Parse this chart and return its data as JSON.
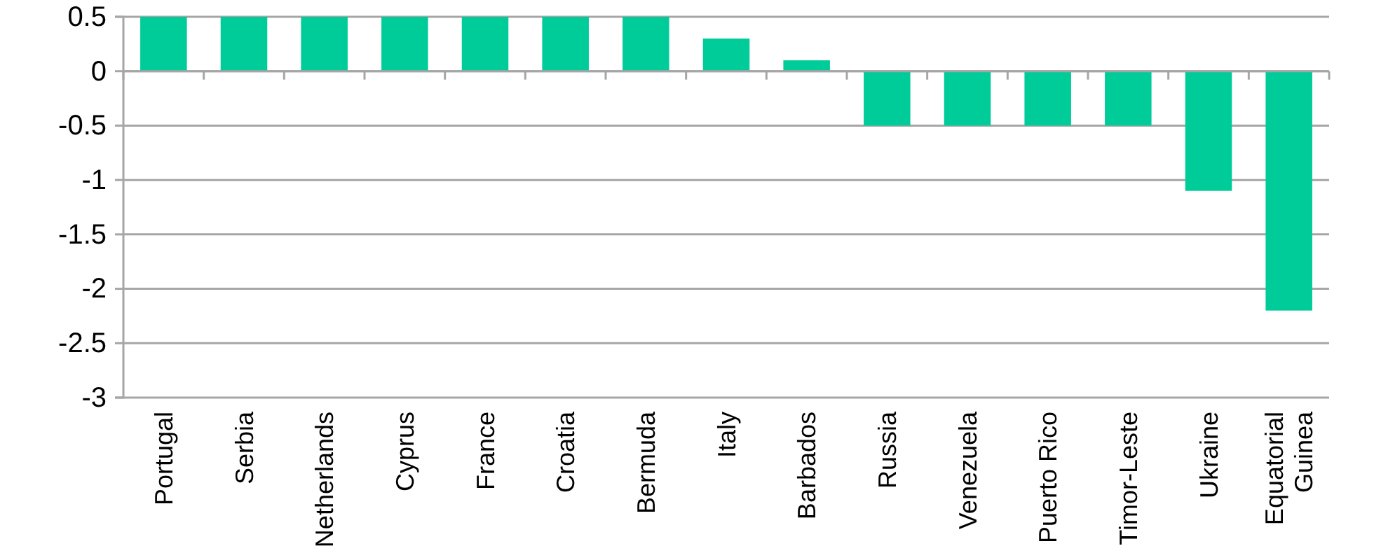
{
  "chart_data": {
    "type": "bar",
    "categories": [
      "Portugal",
      "Serbia",
      "Netherlands",
      "Cyprus",
      "France",
      "Croatia",
      "Bermuda",
      "Italy",
      "Barbados",
      "Russia",
      "Venezuela",
      "Puerto Rico",
      "Timor-Leste",
      "Ukraine",
      "Equatorial Guinea"
    ],
    "values": [
      0.5,
      0.5,
      0.5,
      0.5,
      0.5,
      0.5,
      0.5,
      0.3,
      0.1,
      -0.5,
      -0.5,
      -0.5,
      -0.5,
      -1.1,
      -2.2
    ],
    "color": "#00cc99",
    "ylim": [
      -3,
      0.5
    ],
    "yticks": [
      -3,
      -2.5,
      -2,
      -1.5,
      -1,
      -0.5,
      0,
      0.5
    ],
    "grid": "y"
  }
}
